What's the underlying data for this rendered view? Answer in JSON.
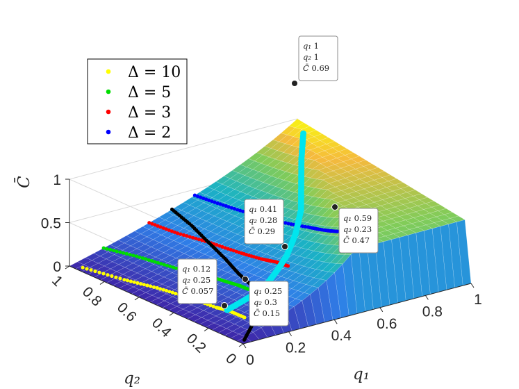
{
  "chart_data": {
    "type": "scatter",
    "view": "3d-surface",
    "x": {
      "label": "q₁",
      "range": [
        0,
        1
      ],
      "ticks": [
        "0",
        "0.2",
        "0.4",
        "0.6",
        "0.8",
        "1"
      ]
    },
    "y": {
      "label": "q₂",
      "range": [
        0,
        1
      ],
      "ticks": [
        "0",
        "0.2",
        "0.4",
        "0.6",
        "0.8",
        "1"
      ]
    },
    "z": {
      "label": "C̄",
      "range": [
        0,
        1
      ],
      "ticks": [
        "0",
        "0.5",
        "1"
      ]
    },
    "grid": true,
    "colormap": "parula",
    "legend_position": "top-left",
    "series": [
      {
        "name": "Δ = 10",
        "color": "#ffff00",
        "points": [
          [
            0.02,
            0.95
          ],
          [
            0.05,
            0.75
          ],
          [
            0.08,
            0.6
          ],
          [
            0.1,
            0.45
          ],
          [
            0.11,
            0.3
          ],
          [
            0.12,
            0.25
          ],
          [
            0.12,
            0.15
          ]
        ]
      },
      {
        "name": "Δ = 5",
        "color": "#00dd00",
        "points": [
          [
            0.15,
            1.0
          ],
          [
            0.18,
            0.85
          ],
          [
            0.2,
            0.7
          ],
          [
            0.22,
            0.55
          ],
          [
            0.24,
            0.45
          ],
          [
            0.25,
            0.35
          ],
          [
            0.25,
            0.3
          ]
        ]
      },
      {
        "name": "Δ = 3",
        "color": "#ff0000",
        "points": [
          [
            0.35,
            1.0
          ],
          [
            0.36,
            0.85
          ],
          [
            0.38,
            0.7
          ],
          [
            0.39,
            0.55
          ],
          [
            0.4,
            0.42
          ],
          [
            0.41,
            0.35
          ],
          [
            0.41,
            0.28
          ]
        ]
      },
      {
        "name": "Δ = 2",
        "color": "#0000ff",
        "points": [
          [
            0.55,
            1.0
          ],
          [
            0.56,
            0.85
          ],
          [
            0.57,
            0.7
          ],
          [
            0.58,
            0.55
          ],
          [
            0.59,
            0.4
          ],
          [
            0.59,
            0.3
          ],
          [
            0.59,
            0.23
          ]
        ]
      },
      {
        "name": "",
        "color": "#000000",
        "points": [
          [
            0.45,
            1.0
          ],
          [
            0.42,
            0.85
          ],
          [
            0.38,
            0.7
          ],
          [
            0.34,
            0.55
          ],
          [
            0.3,
            0.42
          ],
          [
            0.27,
            0.3
          ],
          [
            0.22,
            0.2
          ],
          [
            0.1,
            0.08
          ],
          [
            0.02,
            0.02
          ]
        ]
      },
      {
        "name": "",
        "color": "#00e5ee",
        "points": [
          [
            0.95,
            0.9
          ],
          [
            0.85,
            0.78
          ],
          [
            0.75,
            0.65
          ],
          [
            0.65,
            0.52
          ],
          [
            0.55,
            0.42
          ],
          [
            0.45,
            0.34
          ],
          [
            0.38,
            0.3
          ],
          [
            0.3,
            0.26
          ],
          [
            0.22,
            0.25
          ],
          [
            0.12,
            0.25
          ]
        ]
      }
    ],
    "datatips": [
      {
        "q1": "1",
        "q2": "1",
        "C": "0.69"
      },
      {
        "q1": "0.41",
        "q2": "0.28",
        "C": "0.29"
      },
      {
        "q1": "0.59",
        "q2": "0.23",
        "C": "0.47"
      },
      {
        "q1": "0.12",
        "q2": "0.25",
        "C": "0.057"
      },
      {
        "q1": "0.25",
        "q2": "0.3",
        "C": "0.15"
      }
    ]
  }
}
